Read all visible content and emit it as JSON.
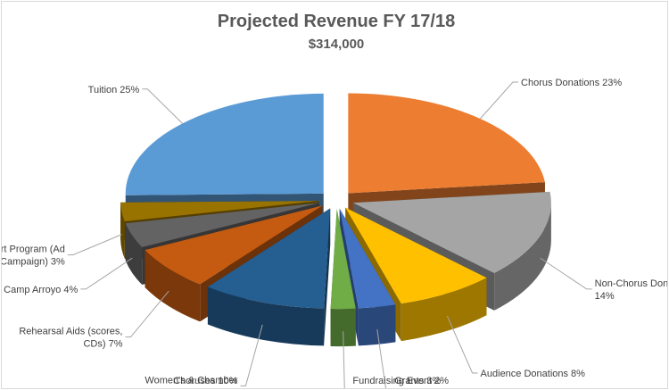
{
  "chart_data": {
    "type": "pie",
    "variant": "3d-exploded",
    "title": "Projected Revenue FY 17/18",
    "subtitle": "$314,000",
    "slices": [
      {
        "category": "Chorus Donations",
        "label": "Chorus Donations 23%",
        "value": 23,
        "color": "#ed7d31"
      },
      {
        "category": "Non-Chorus Donations",
        "label": [
          "Non-Chorus Donations",
          "14%"
        ],
        "value": 14,
        "color": "#a5a5a5"
      },
      {
        "category": "Audience Donations",
        "label": "Audience Donations 8%",
        "value": 8,
        "color": "#ffc000"
      },
      {
        "category": "Grants",
        "label": "Grants 3%",
        "value": 3,
        "color": "#4472c4"
      },
      {
        "category": "Fundraising Event",
        "label": "Fundraising Event 2%",
        "value": 2,
        "color": "#70ad47"
      },
      {
        "category": "Women's & Chamber Choruses",
        "label": [
          "Women's & Chamber",
          "Choruses 10%"
        ],
        "value": 10,
        "color": "#255e91"
      },
      {
        "category": "Rehearsal Aids (scores, CDs)",
        "label": [
          "Rehearsal Aids (scores,",
          "CDs) 7%"
        ],
        "value": 7,
        "color": "#c55a11"
      },
      {
        "category": "Camp Arroyo",
        "label": "Camp Arroyo 4%",
        "value": 4,
        "color": "#636363"
      },
      {
        "category": "Concert Program (Ad Campaign)",
        "label": [
          "Concert Program (Ad",
          "Campaign) 3%"
        ],
        "value": 3,
        "color": "#997300"
      },
      {
        "category": "Tuition",
        "label": "Tuition 25%",
        "value": 25,
        "color": "#5b9bd5"
      }
    ]
  }
}
